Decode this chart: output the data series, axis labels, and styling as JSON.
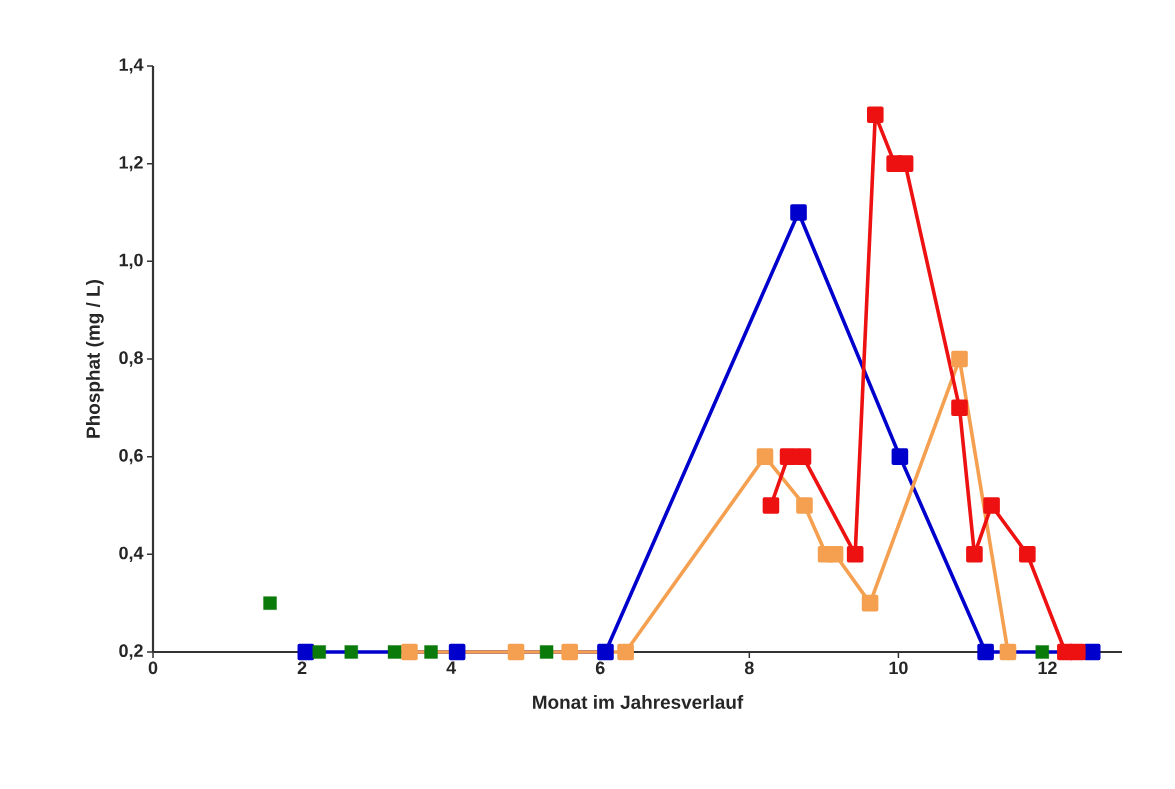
{
  "chart_data": {
    "type": "line",
    "xlabel": "Monat im Jahresverlauf",
    "ylabel": "Phosphat (mg / L)",
    "xlim": [
      0,
      13
    ],
    "ylim": [
      0.2,
      1.4
    ],
    "xticks": [
      0,
      2,
      4,
      6,
      8,
      10,
      12
    ],
    "yticks": [
      {
        "value": 0.2,
        "label": "0,2"
      },
      {
        "value": 0.4,
        "label": "0,4"
      },
      {
        "value": 0.6,
        "label": "0,6"
      },
      {
        "value": 0.8,
        "label": "0,8"
      },
      {
        "value": 1.0,
        "label": "1,0"
      },
      {
        "value": 1.2,
        "label": "1,2"
      },
      {
        "value": 1.4,
        "label": "1,4"
      }
    ],
    "marker": "square",
    "line_style": "solid",
    "series": [
      {
        "color": "#0000cc",
        "x": [
          2.05,
          4.08,
          6.07,
          8.66,
          10.02,
          11.17,
          12.6
        ],
        "values": [
          0.2,
          0.2,
          0.2,
          1.1,
          0.6,
          0.2,
          0.2
        ]
      },
      {
        "color": "#f4a050",
        "x": [
          3.44,
          4.87,
          5.59,
          6.34,
          8.21,
          8.74,
          9.03,
          9.15,
          9.62,
          10.82,
          11.47
        ],
        "values": [
          0.2,
          0.2,
          0.2,
          0.2,
          0.6,
          0.5,
          0.4,
          0.4,
          0.3,
          0.8,
          0.2
        ]
      },
      {
        "color": "#ee1111",
        "x": [
          8.29,
          8.52,
          8.72,
          9.42,
          9.69,
          9.95,
          10.09,
          10.82,
          11.02,
          11.25,
          11.73,
          12.24,
          12.4
        ],
        "values": [
          0.5,
          0.6,
          0.6,
          0.4,
          1.3,
          1.2,
          1.2,
          0.7,
          0.4,
          0.5,
          0.4,
          0.2,
          0.2
        ]
      },
      {
        "type": "scatter",
        "color": "#0a7a0a",
        "x": [
          1.57,
          2.23,
          2.66,
          3.24,
          3.73,
          5.28,
          11.93
        ],
        "values": [
          0.3,
          0.2,
          0.2,
          0.2,
          0.2,
          0.2,
          0.2
        ]
      }
    ]
  }
}
